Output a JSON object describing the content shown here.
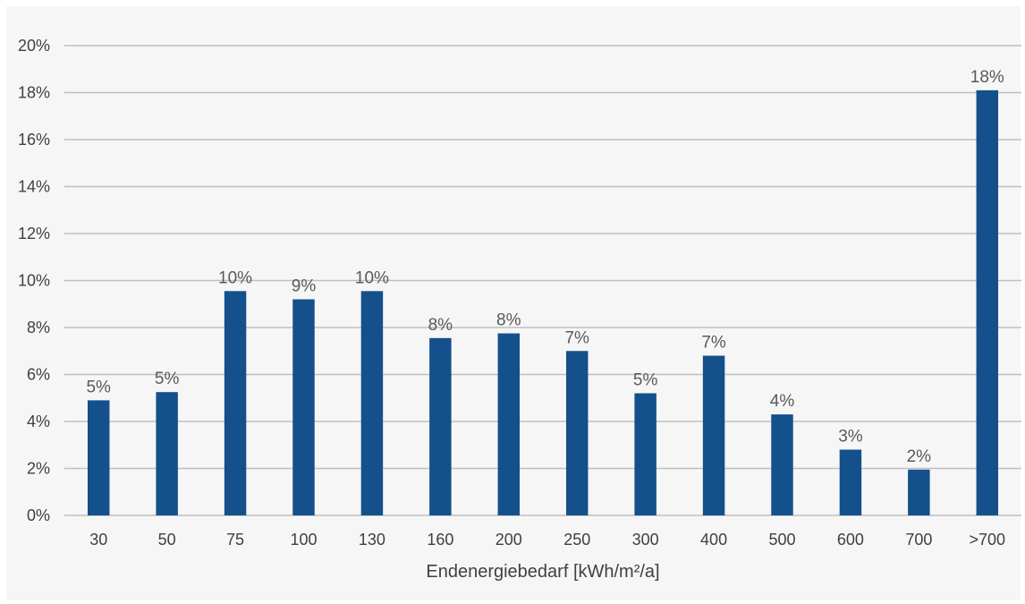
{
  "chart_data": {
    "type": "bar",
    "title": "",
    "xlabel": "Endenergiebedarf [kWh/m²/a]",
    "ylabel": "",
    "categories": [
      "30",
      "50",
      "75",
      "100",
      "130",
      "160",
      "200",
      "250",
      "300",
      "400",
      "500",
      "600",
      "700",
      ">700"
    ],
    "values": [
      4.9,
      5.25,
      9.55,
      9.2,
      9.55,
      7.55,
      7.75,
      7.0,
      5.2,
      6.8,
      4.3,
      2.8,
      1.95,
      18.1
    ],
    "data_labels": [
      "5%",
      "5%",
      "10%",
      "9%",
      "10%",
      "8%",
      "8%",
      "7%",
      "5%",
      "7%",
      "4%",
      "3%",
      "2%",
      "18%"
    ],
    "y_ticks": [
      "0%",
      "2%",
      "4%",
      "6%",
      "8%",
      "10%",
      "12%",
      "14%",
      "16%",
      "18%",
      "20%"
    ],
    "ylim": [
      0,
      20
    ],
    "grid": true,
    "legend": "none",
    "bar_color": "#14508c",
    "grid_color": "#bfbfbf",
    "background_color": "#f6f6f6"
  }
}
